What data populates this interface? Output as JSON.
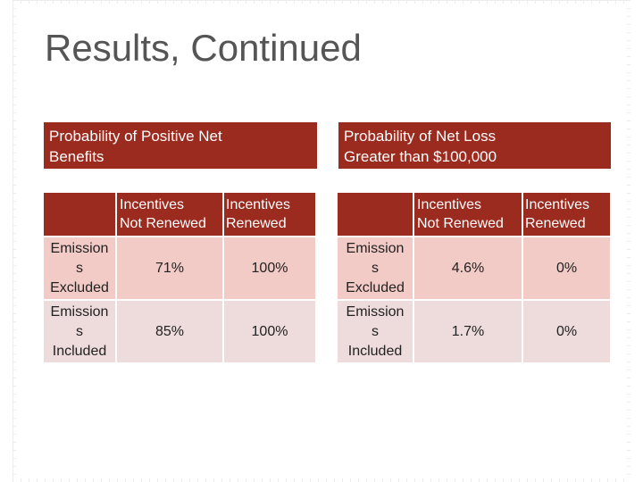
{
  "slide": {
    "title": "Results, Continued"
  },
  "left_panel": {
    "header": "Probability of Positive Net\nBenefits",
    "col1": "Incentives\nNot Renewed",
    "col2": "Incentives\nRenewed",
    "rows": [
      {
        "label": "Emission\ns\nExcluded",
        "v1": "71%",
        "v2": "100%"
      },
      {
        "label": "Emission\ns\nIncluded",
        "v1": "85%",
        "v2": "100%"
      }
    ]
  },
  "right_panel": {
    "header": "Probability of Net Loss\nGreater than $100,000",
    "col1": "Incentives\nNot Renewed",
    "col2": "Incentives\nRenewed",
    "rows": [
      {
        "label": "Emission\ns\nExcluded",
        "v1": "4.6%",
        "v2": "0%"
      },
      {
        "label": "Emission\ns\nIncluded",
        "v1": "1.7%",
        "v2": "0%"
      }
    ]
  },
  "colors": {
    "header_red": "#9b2b1f",
    "row_light_pink": "#f2cac6",
    "row_pale_pink": "#eddcdb",
    "title_gray": "#555555"
  }
}
